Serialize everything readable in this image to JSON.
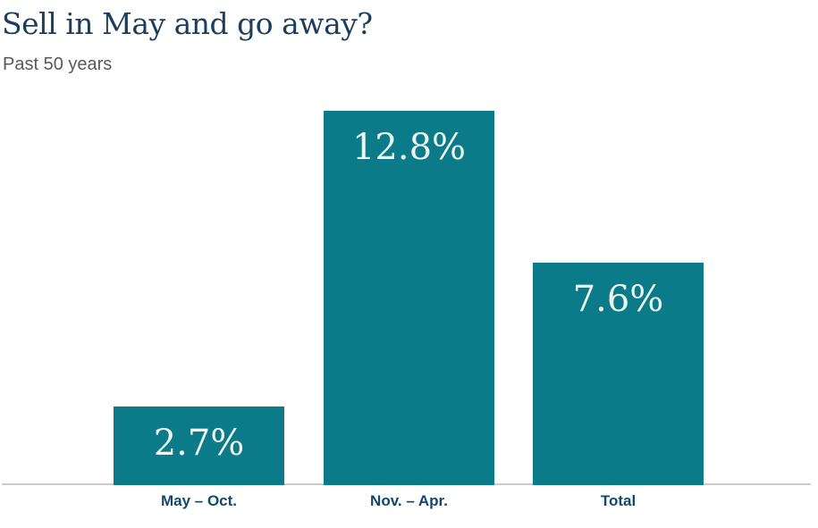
{
  "page": {
    "title": "Sell in May and go away?",
    "subtitle": "Past 50 years"
  },
  "chart_data": {
    "type": "bar",
    "title": "Sell in May and go away?",
    "subtitle": "Past 50 years",
    "categories": [
      "May – Oct.",
      "Nov. – Apr.",
      "Total"
    ],
    "values": [
      2.7,
      12.8,
      7.6
    ],
    "value_labels": [
      "2.7%",
      "12.8%",
      "7.6%"
    ],
    "unit": "percent",
    "ylim": [
      0,
      13
    ],
    "grid": false,
    "legend": false,
    "value_label_position": "inside-top",
    "colors": {
      "bar": "#0c7b89",
      "value_label": "#ecf6f3",
      "category_label": "#12486e",
      "title": "#1e3d5c",
      "subtitle": "#595959",
      "baseline": "#cbcbcb",
      "background": "#ffffff"
    }
  }
}
